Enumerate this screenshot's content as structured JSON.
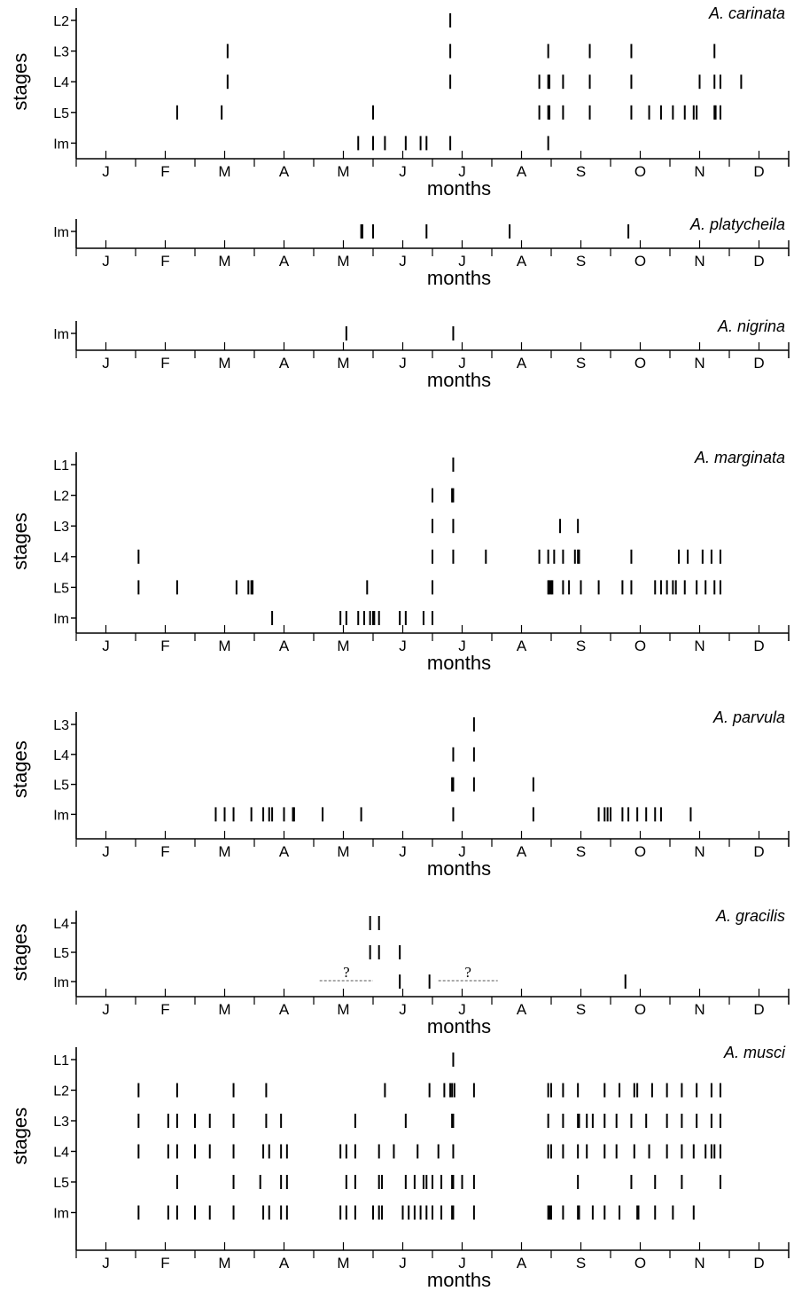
{
  "chart_data": [
    {
      "type": "scatter",
      "title": "A. carinata",
      "xlabel": "months",
      "ylabel": "stages",
      "stages": [
        "L2",
        "L3",
        "L4",
        "L5",
        "Im"
      ],
      "months": [
        "J",
        "F",
        "M",
        "A",
        "M",
        "J",
        "J",
        "A",
        "S",
        "O",
        "N",
        "D"
      ],
      "xlim": [
        0,
        12
      ],
      "records": {
        "L2": [
          6.3
        ],
        "L3": [
          2.55,
          6.3,
          7.95,
          8.65,
          9.35,
          10.75
        ],
        "L4": [
          2.55,
          6.3,
          7.8,
          7.95,
          7.97,
          8.2,
          8.65,
          9.35,
          10.5,
          10.75,
          10.85,
          11.2
        ],
        "L5": [
          1.7,
          2.45,
          5.0,
          7.8,
          7.95,
          7.97,
          8.2,
          8.65,
          9.35,
          9.65,
          9.85,
          10.05,
          10.25,
          10.4,
          10.45,
          10.75,
          10.77,
          10.85
        ],
        "Im": [
          4.75,
          5.0,
          5.2,
          5.55,
          5.8,
          5.9,
          6.3,
          7.95
        ]
      }
    },
    {
      "type": "scatter",
      "title": "A. platycheila",
      "xlabel": "months",
      "stages": [
        "Im"
      ],
      "months": [
        "J",
        "F",
        "M",
        "A",
        "M",
        "J",
        "J",
        "A",
        "S",
        "O",
        "N",
        "D"
      ],
      "xlim": [
        0,
        12
      ],
      "records": {
        "Im": [
          4.8,
          4.82,
          5.0,
          5.9,
          7.3,
          9.3
        ]
      }
    },
    {
      "type": "scatter",
      "title": "A. nigrina",
      "xlabel": "months",
      "stages": [
        "Im"
      ],
      "months": [
        "J",
        "F",
        "M",
        "A",
        "M",
        "J",
        "J",
        "A",
        "S",
        "O",
        "N",
        "D"
      ],
      "xlim": [
        0,
        12
      ],
      "records": {
        "Im": [
          4.55,
          6.35
        ]
      }
    },
    {
      "type": "scatter",
      "title": "A. marginata",
      "xlabel": "months",
      "ylabel": "stages",
      "stages": [
        "L1",
        "L2",
        "L3",
        "L4",
        "L5",
        "Im"
      ],
      "months": [
        "J",
        "F",
        "M",
        "A",
        "M",
        "J",
        "J",
        "A",
        "S",
        "O",
        "N",
        "D"
      ],
      "xlim": [
        0,
        12
      ],
      "records": {
        "L1": [
          6.35
        ],
        "L2": [
          6.0,
          6.33,
          6.35
        ],
        "L3": [
          6.0,
          6.35,
          8.15,
          8.45
        ],
        "L4": [
          1.05,
          6.0,
          6.35,
          6.9,
          7.8,
          7.95,
          8.05,
          8.2,
          8.4,
          8.45,
          8.47,
          9.35,
          10.15,
          10.3,
          10.55,
          10.7,
          10.85
        ],
        "L5": [
          1.05,
          1.7,
          2.7,
          2.9,
          2.95,
          2.97,
          4.9,
          6.0,
          7.95,
          7.97,
          8.0,
          8.02,
          8.2,
          8.3,
          8.5,
          8.8,
          9.2,
          9.35,
          9.75,
          9.85,
          9.95,
          10.05,
          10.1,
          10.25,
          10.45,
          10.6,
          10.75,
          10.85
        ],
        "Im": [
          3.3,
          4.45,
          4.55,
          4.75,
          4.85,
          4.95,
          5.0,
          5.02,
          5.1,
          5.45,
          5.55,
          5.85,
          6.0
        ]
      }
    },
    {
      "type": "scatter",
      "title": "A. parvula",
      "xlabel": "months",
      "ylabel": "stages",
      "stages": [
        "L3",
        "L4",
        "L5",
        "Im"
      ],
      "months": [
        "J",
        "F",
        "M",
        "A",
        "M",
        "J",
        "J",
        "A",
        "S",
        "O",
        "N",
        "D"
      ],
      "xlim": [
        0,
        12
      ],
      "records": {
        "L3": [
          6.7
        ],
        "L4": [
          6.35,
          6.7
        ],
        "L5": [
          6.33,
          6.35,
          6.7,
          7.7
        ],
        "Im": [
          2.35,
          2.5,
          2.65,
          2.95,
          3.15,
          3.25,
          3.3,
          3.5,
          3.65,
          3.67,
          4.15,
          4.8,
          6.35,
          7.7,
          8.8,
          8.9,
          8.95,
          9.0,
          9.2,
          9.3,
          9.45,
          9.6,
          9.75,
          9.85,
          10.35
        ]
      }
    },
    {
      "type": "scatter",
      "title": "A. gracilis",
      "xlabel": "months",
      "ylabel": "stages",
      "stages": [
        "L4",
        "L5",
        "Im"
      ],
      "months": [
        "J",
        "F",
        "M",
        "A",
        "M",
        "J",
        "J",
        "A",
        "S",
        "O",
        "N",
        "D"
      ],
      "xlim": [
        0,
        12
      ],
      "records": {
        "L4": [
          4.95,
          5.1
        ],
        "L5": [
          4.95,
          5.1,
          5.45
        ],
        "Im": [
          5.45,
          5.95,
          9.25
        ]
      },
      "uncertain_ranges": [
        {
          "label": "?",
          "stage": "Im",
          "from": 4.1,
          "to": 5.0
        },
        {
          "label": "?",
          "stage": "Im",
          "from": 6.1,
          "to": 7.1
        }
      ]
    },
    {
      "type": "scatter",
      "title": "A. musci",
      "xlabel": "months",
      "ylabel": "stages",
      "stages": [
        "L1",
        "L2",
        "L3",
        "L4",
        "L5",
        "Im"
      ],
      "months": [
        "J",
        "F",
        "M",
        "A",
        "M",
        "J",
        "J",
        "A",
        "S",
        "O",
        "N",
        "D"
      ],
      "xlim": [
        0,
        12
      ],
      "records": {
        "L1": [
          6.35
        ],
        "L2": [
          1.05,
          1.7,
          2.65,
          3.2,
          5.2,
          5.95,
          6.2,
          6.3,
          6.33,
          6.37,
          6.7,
          7.95,
          8.0,
          8.2,
          8.45,
          8.9,
          9.15,
          9.4,
          9.45,
          9.7,
          9.95,
          10.2,
          10.45,
          10.7,
          10.85
        ],
        "L3": [
          1.05,
          1.55,
          1.7,
          2.0,
          2.25,
          2.65,
          3.2,
          3.45,
          4.7,
          5.55,
          6.33,
          6.35,
          7.95,
          8.2,
          8.45,
          8.47,
          8.6,
          8.7,
          8.9,
          9.1,
          9.35,
          9.6,
          9.95,
          10.2,
          10.45,
          10.7,
          10.85
        ],
        "L4": [
          1.05,
          1.55,
          1.7,
          2.0,
          2.25,
          2.65,
          3.15,
          3.25,
          3.45,
          3.55,
          4.45,
          4.55,
          4.7,
          5.1,
          5.35,
          5.75,
          6.1,
          6.35,
          7.95,
          8.0,
          8.2,
          8.45,
          8.6,
          8.9,
          9.1,
          9.4,
          9.65,
          9.95,
          10.2,
          10.4,
          10.6,
          10.7,
          10.75,
          10.85
        ],
        "L5": [
          1.7,
          2.65,
          3.1,
          3.45,
          3.55,
          4.55,
          4.7,
          5.1,
          5.15,
          5.55,
          5.7,
          5.85,
          5.9,
          6.0,
          6.15,
          6.33,
          6.35,
          6.5,
          6.7,
          8.45,
          9.35,
          9.75,
          10.2,
          10.85
        ],
        "Im": [
          1.05,
          1.55,
          1.7,
          2.0,
          2.25,
          2.65,
          3.15,
          3.25,
          3.45,
          3.55,
          4.45,
          4.55,
          4.7,
          5.0,
          5.1,
          5.15,
          5.5,
          5.6,
          5.7,
          5.8,
          5.9,
          6.0,
          6.15,
          6.33,
          6.35,
          6.7,
          7.95,
          7.97,
          8.0,
          8.2,
          8.45,
          8.47,
          8.7,
          8.9,
          9.15,
          9.45,
          9.47,
          9.75,
          10.05,
          10.4
        ]
      }
    }
  ]
}
